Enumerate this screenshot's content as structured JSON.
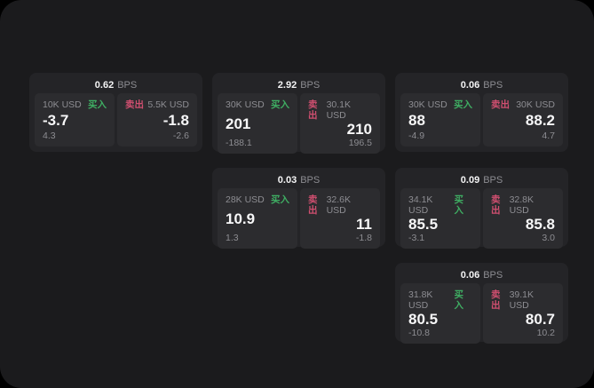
{
  "labels": {
    "bps": "BPS",
    "buy": "买入",
    "sell": "卖出"
  },
  "colors": {
    "buy_green": "#3fae63",
    "sell_red": "#d04f70",
    "panel_bg": "#1b1b1d",
    "card_bg": "#242427",
    "tile_bg": "#2c2c2f"
  },
  "cards": [
    {
      "bps": "0.62",
      "buy": {
        "amount": "10K USD",
        "value": "-3.7",
        "delta": "4.3"
      },
      "sell": {
        "amount": "5.5K USD",
        "value": "-1.8",
        "delta": "-2.6"
      }
    },
    {
      "bps": "2.92",
      "buy": {
        "amount": "30K USD",
        "value": "201",
        "delta": "-188.1"
      },
      "sell": {
        "amount": "30.1K USD",
        "value": "210",
        "delta": "196.5"
      }
    },
    {
      "bps": "0.06",
      "buy": {
        "amount": "30K USD",
        "value": "88",
        "delta": "-4.9"
      },
      "sell": {
        "amount": "30K USD",
        "value": "88.2",
        "delta": "4.7"
      }
    },
    {
      "bps": "0.03",
      "buy": {
        "amount": "28K USD",
        "value": "10.9",
        "delta": "1.3"
      },
      "sell": {
        "amount": "32.6K USD",
        "value": "11",
        "delta": "-1.8"
      }
    },
    {
      "bps": "0.09",
      "buy": {
        "amount": "34.1K USD",
        "value": "85.5",
        "delta": "-3.1"
      },
      "sell": {
        "amount": "32.8K USD",
        "value": "85.8",
        "delta": "3.0"
      }
    },
    {
      "bps": "0.06",
      "buy": {
        "amount": "31.8K USD",
        "value": "80.5",
        "delta": "-10.8"
      },
      "sell": {
        "amount": "39.1K USD",
        "value": "80.7",
        "delta": "10.2"
      }
    }
  ]
}
